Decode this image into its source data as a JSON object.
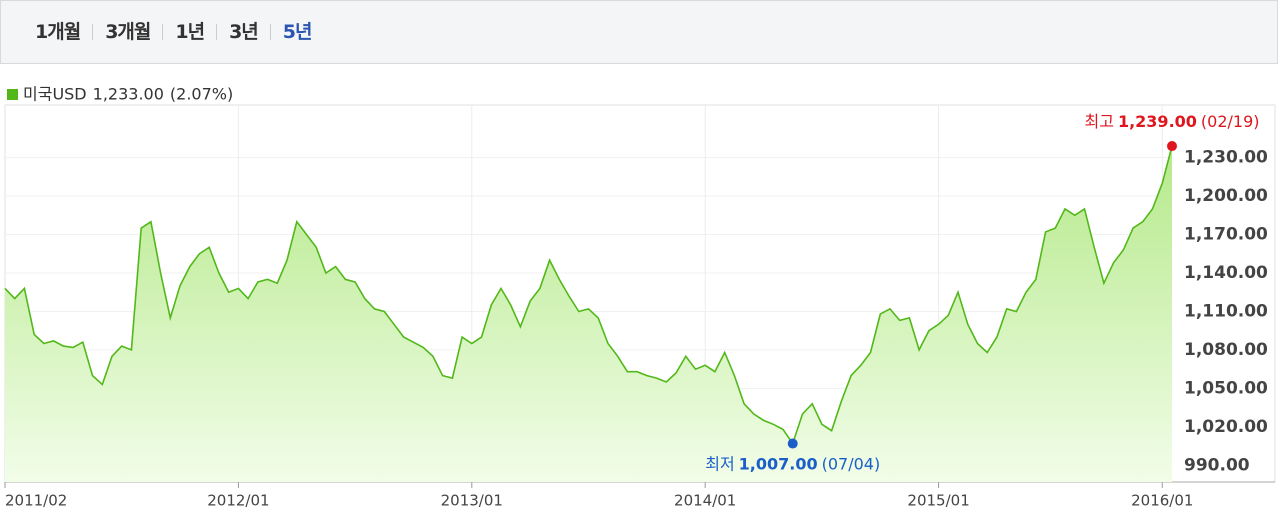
{
  "tabs": [
    "1개월",
    "3개월",
    "1년",
    "3년",
    "5년"
  ],
  "selected_tab": "5년",
  "chart_data": {
    "type": "area",
    "legend_value": "1,233.00",
    "legend_change": "(2.07%)",
    "series": [
      {
        "name": "미국USD",
        "color": "#52b81a",
        "values": [
          1128,
          1120,
          1128,
          1092,
          1085,
          1087,
          1083,
          1082,
          1086,
          1060,
          1053,
          1075,
          1083,
          1080,
          1175,
          1180,
          1140,
          1105,
          1130,
          1145,
          1155,
          1160,
          1140,
          1125,
          1128,
          1120,
          1133,
          1135,
          1132,
          1150,
          1180,
          1170,
          1160,
          1140,
          1145,
          1135,
          1133,
          1120,
          1112,
          1110,
          1100,
          1090,
          1086,
          1082,
          1075,
          1060,
          1058,
          1090,
          1085,
          1090,
          1115,
          1128,
          1115,
          1098,
          1118,
          1128,
          1150,
          1135,
          1122,
          1110,
          1112,
          1105,
          1085,
          1075,
          1063,
          1063,
          1060,
          1058,
          1055,
          1062,
          1075,
          1065,
          1068,
          1063,
          1078,
          1060,
          1038,
          1030,
          1025,
          1022,
          1018,
          1007,
          1030,
          1038,
          1022,
          1017,
          1040,
          1060,
          1068,
          1078,
          1108,
          1112,
          1103,
          1105,
          1080,
          1095,
          1100,
          1107,
          1125,
          1100,
          1085,
          1078,
          1090,
          1112,
          1110,
          1125,
          1135,
          1172,
          1175,
          1190,
          1185,
          1190,
          1160,
          1132,
          1148,
          1158,
          1175,
          1180,
          1190,
          1210,
          1239
        ]
      }
    ],
    "ylim": [
      977,
      1271
    ],
    "yticks": [
      {
        "value": 990,
        "label": "990.00"
      },
      {
        "value": 1020,
        "label": "1,020.00"
      },
      {
        "value": 1050,
        "label": "1,050.00"
      },
      {
        "value": 1080,
        "label": "1,080.00"
      },
      {
        "value": 1110,
        "label": "1,110.00"
      },
      {
        "value": 1140,
        "label": "1,140.00"
      },
      {
        "value": 1170,
        "label": "1,170.00"
      },
      {
        "value": 1200,
        "label": "1,200.00"
      },
      {
        "value": 1230,
        "label": "1,230.00"
      }
    ],
    "xticks": [
      {
        "value": 0,
        "label": "2011/02"
      },
      {
        "value": 24,
        "label": "2012/01"
      },
      {
        "value": 48,
        "label": "2013/01"
      },
      {
        "value": 72,
        "label": "2014/01"
      },
      {
        "value": 96,
        "label": "2015/01"
      },
      {
        "value": 119,
        "label": "2016/01"
      }
    ],
    "max_annotation": {
      "prefix": "최고",
      "value": "1,239.00",
      "date": "(02/19)",
      "color": "#e0161e"
    },
    "min_annotation": {
      "prefix": "최저",
      "value": "1,007.00",
      "date": "(07/04)",
      "color": "#1a5fc8"
    },
    "grid": true
  }
}
